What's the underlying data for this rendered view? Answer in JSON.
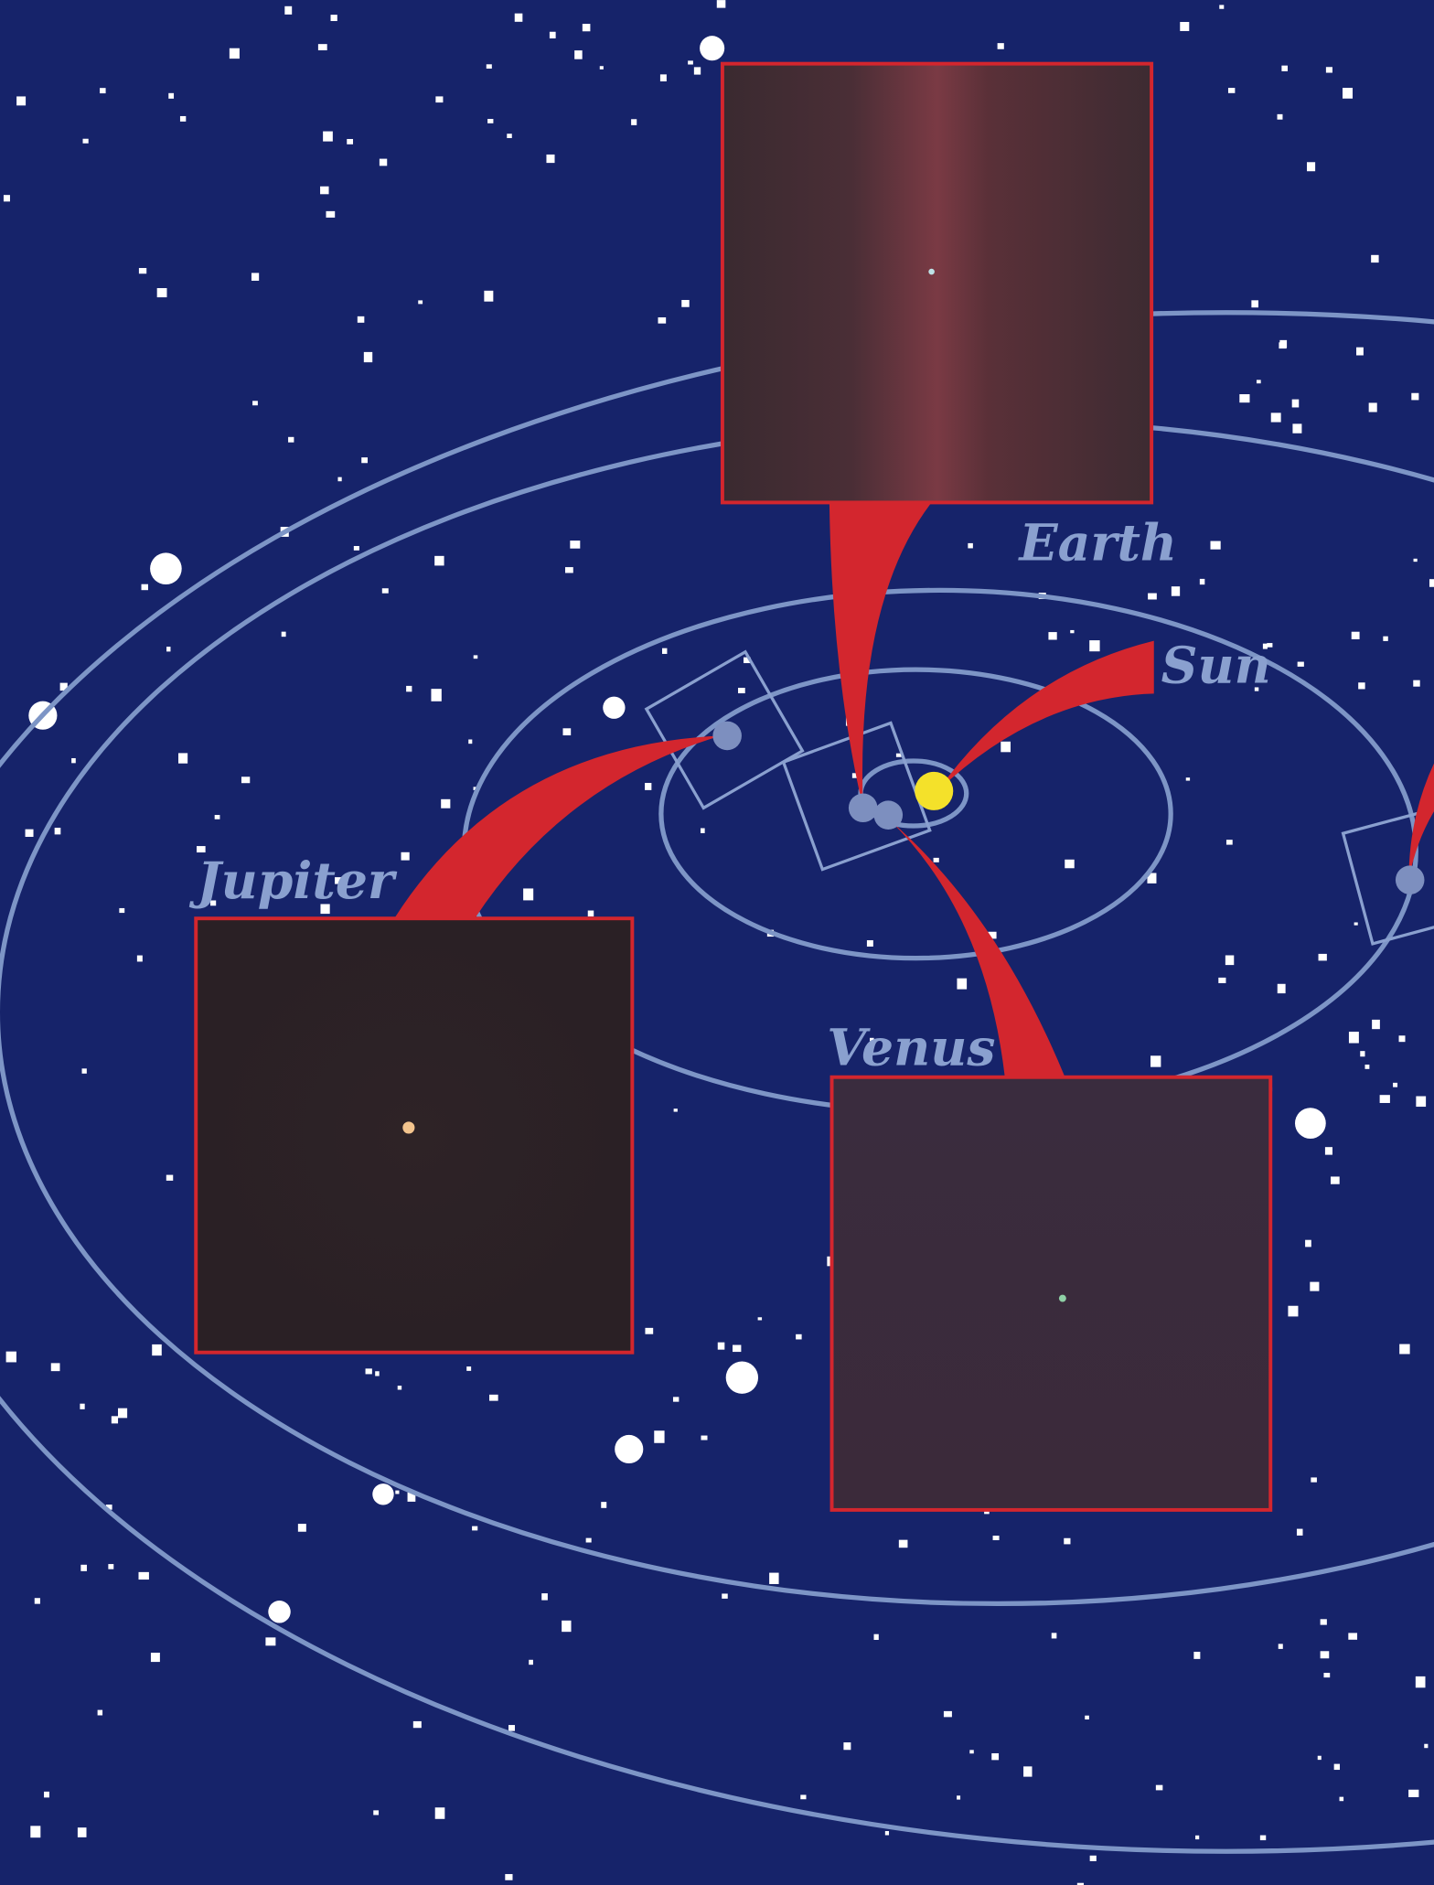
{
  "labels": {
    "earth": "Earth",
    "sun": "Sun",
    "jupiter": "Jupiter",
    "venus": "Venus"
  }
}
